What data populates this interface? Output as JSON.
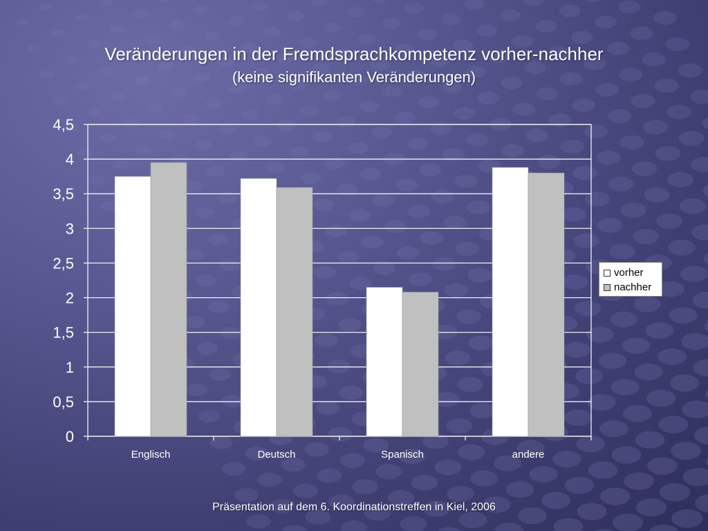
{
  "slide": {
    "title": "Veränderungen in der Fremdsprachkompetenz vorher-nachher",
    "subtitle": "(keine signifikanten Veränderungen)",
    "footer": "Präsentation auf dem 6. Koordinationstreffen in Kiel, 2006"
  },
  "colors": {
    "vorher": "#ffffff",
    "nachher": "#c0c0c0",
    "plot_border": "#ffffff",
    "gridline": "#ffffff"
  },
  "chart_data": {
    "type": "bar",
    "title": "Veränderungen in der Fremdsprachkompetenz vorher-nachher",
    "subtitle": "(keine signifikanten Veränderungen)",
    "categories": [
      "Englisch",
      "Deutsch",
      "Spanisch",
      "andere"
    ],
    "series": [
      {
        "name": "vorher",
        "values": [
          3.75,
          3.72,
          2.15,
          3.88
        ]
      },
      {
        "name": "nachher",
        "values": [
          3.95,
          3.59,
          2.08,
          3.8
        ]
      }
    ],
    "ylim": [
      0,
      4.5
    ],
    "yticks": [
      0,
      0.5,
      1,
      1.5,
      2,
      2.5,
      3,
      3.5,
      4,
      4.5
    ],
    "ytick_labels": [
      "0",
      "0,5",
      "1",
      "1,5",
      "2",
      "2,5",
      "3",
      "3,5",
      "4",
      "4,5"
    ],
    "xlabel": "",
    "ylabel": "",
    "grid": true,
    "legend_position": "right"
  }
}
